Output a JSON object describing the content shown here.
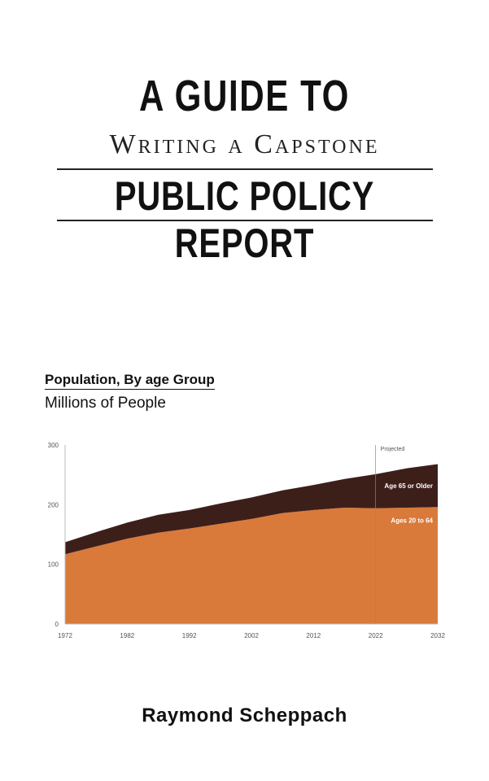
{
  "cover": {
    "title_line1": "A GUIDE TO",
    "title_line2": "Writing a Capstone",
    "title_line3": "PUBLIC POLICY REPORT",
    "author": "Raymond Scheppach"
  },
  "chart_data": {
    "type": "area",
    "title": "Population, By age Group",
    "subtitle": "Millions of People",
    "xlabel": "",
    "ylabel": "",
    "x": [
      1972,
      1977,
      1982,
      1987,
      1992,
      1997,
      2002,
      2007,
      2012,
      2017,
      2022,
      2027,
      2032
    ],
    "x_ticks": [
      "1972",
      "1982",
      "1992",
      "2002",
      "2012",
      "2022",
      "2032"
    ],
    "y_ticks": [
      "0",
      "100",
      "200",
      "300"
    ],
    "xlim": [
      1972,
      2032
    ],
    "ylim": [
      0,
      300
    ],
    "stacked": true,
    "series": [
      {
        "name": "Ages 20 to 64",
        "values": [
          117,
          130,
          143,
          153,
          160,
          168,
          176,
          186,
          191,
          195,
          194,
          195,
          196
        ],
        "color": "#d97a3a"
      },
      {
        "name": "Age 65 or Older",
        "values": [
          20,
          24,
          27,
          30,
          31,
          34,
          36,
          38,
          42,
          48,
          57,
          66,
          72
        ],
        "color": "#3d1f1a"
      }
    ],
    "annotations": [
      {
        "x": 2022,
        "text": "Projected"
      }
    ],
    "grid": false
  }
}
